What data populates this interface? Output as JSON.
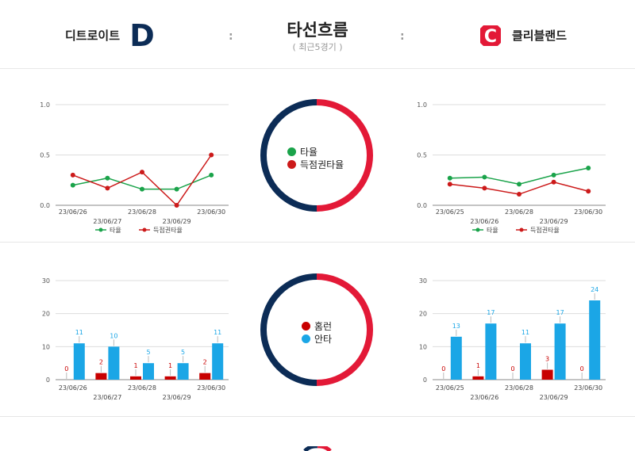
{
  "header": {
    "title": "타선흐름",
    "subtitle": "( 최근5경기 )",
    "team_left": "디트로이트",
    "team_right": "클리블랜드",
    "separator": ":",
    "team_left_logo_letter": "D",
    "team_right_logo_letter": "C"
  },
  "colors": {
    "home_navy": "#0c2c56",
    "away_red": "#e31937",
    "batting_avg": "#1aa34a",
    "scoring_pos": "#cc1a1a",
    "homerun": "#c80000",
    "hit": "#1ba6e6"
  },
  "donut_top_legend": [
    "타율",
    "득점권타율"
  ],
  "donut_bottom_legend": [
    "홈런",
    "안타"
  ],
  "chart_data": [
    {
      "type": "line",
      "team": "디트로이트",
      "categories": [
        "23/06/26",
        "23/06/27",
        "23/06/28",
        "23/06/29",
        "23/06/30"
      ],
      "series": [
        {
          "name": "타율",
          "values": [
            0.2,
            0.27,
            0.16,
            0.16,
            0.3
          ]
        },
        {
          "name": "득점권타율",
          "values": [
            0.3,
            0.17,
            0.33,
            0.0,
            0.5
          ]
        }
      ],
      "ylim": [
        0,
        1.0
      ],
      "yticks": [
        "0.0",
        "0.5",
        "1.0"
      ]
    },
    {
      "type": "line",
      "team": "클리블랜드",
      "categories": [
        "23/06/25",
        "23/06/26",
        "23/06/28",
        "23/06/29",
        "23/06/30"
      ],
      "series": [
        {
          "name": "타율",
          "values": [
            0.27,
            0.28,
            0.21,
            0.3,
            0.37
          ]
        },
        {
          "name": "득점권타율",
          "values": [
            0.21,
            0.17,
            0.11,
            0.23,
            0.14
          ]
        }
      ],
      "ylim": [
        0,
        1.0
      ],
      "yticks": [
        "0.0",
        "0.5",
        "1.0"
      ]
    },
    {
      "type": "bar",
      "team": "디트로이트",
      "categories": [
        "23/06/26",
        "23/06/27",
        "23/06/28",
        "23/06/29",
        "23/06/30"
      ],
      "series": [
        {
          "name": "홈런",
          "values": [
            0,
            2,
            1,
            1,
            2
          ]
        },
        {
          "name": "안타",
          "values": [
            11,
            10,
            5,
            5,
            11
          ]
        }
      ],
      "ylim": [
        0,
        30
      ],
      "yticks": [
        "0",
        "10",
        "20",
        "30"
      ]
    },
    {
      "type": "bar",
      "team": "클리블랜드",
      "categories": [
        "23/06/25",
        "23/06/26",
        "23/06/28",
        "23/06/29",
        "23/06/30"
      ],
      "series": [
        {
          "name": "홈런",
          "values": [
            0,
            1,
            0,
            3,
            0
          ]
        },
        {
          "name": "안타",
          "values": [
            13,
            17,
            11,
            17,
            24
          ]
        }
      ],
      "ylim": [
        0,
        30
      ],
      "yticks": [
        "0",
        "10",
        "20",
        "30"
      ]
    }
  ]
}
